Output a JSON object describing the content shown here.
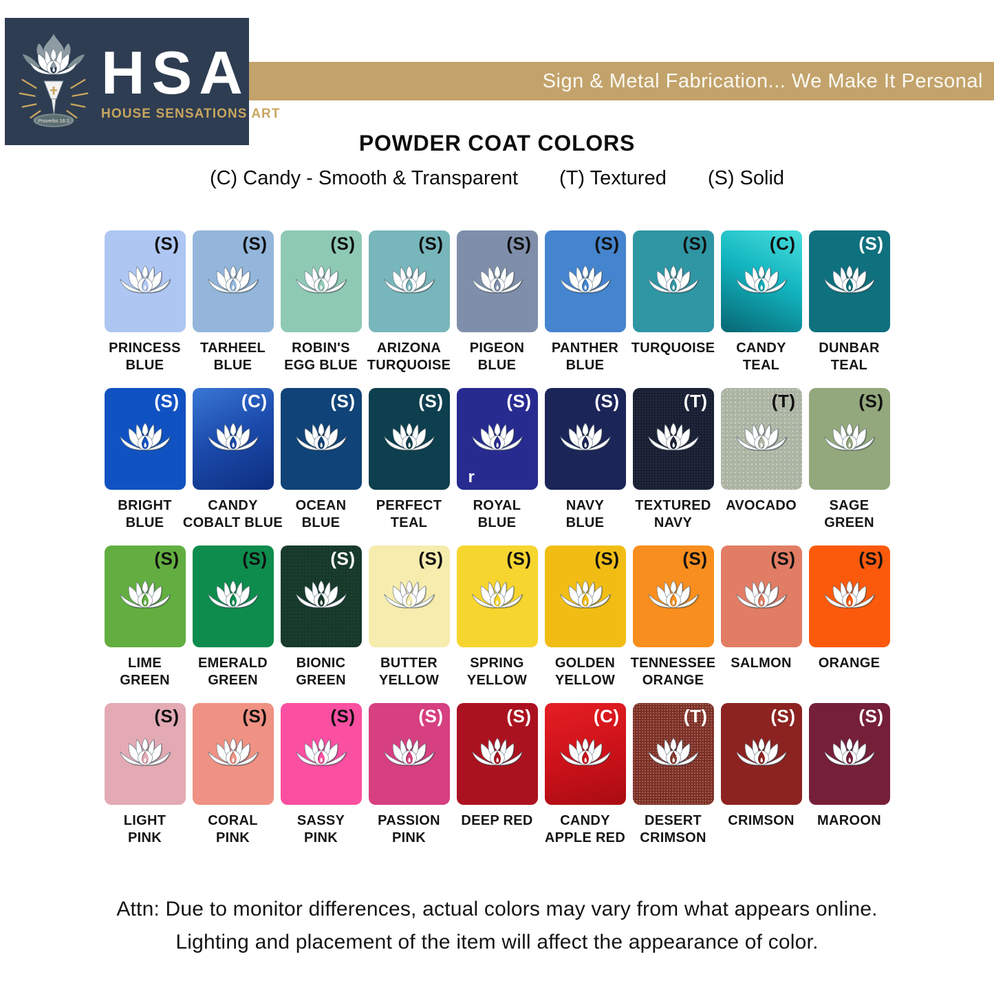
{
  "header": {
    "logo_acronym": "HSA",
    "logo_name": "HOUSE SENSATIONS ART",
    "logo_verse": "Proverbs 16:3",
    "banner_text": "Sign & Metal Fabrication... We Make It Personal"
  },
  "title": "POWDER COAT COLORS",
  "legend": [
    "(C) Candy - Smooth & Transparent",
    "(T) Textured",
    "(S) Solid"
  ],
  "colors": {
    "brand_gold": "#c3a36b",
    "brand_navy": "#2e3d52"
  },
  "swatches": [
    {
      "name_lines": [
        "PRINCESS",
        "BLUE"
      ],
      "finish_code": "(S)",
      "code_color": "#111111",
      "background": "#aec6f2"
    },
    {
      "name_lines": [
        "TARHEEL",
        "BLUE"
      ],
      "finish_code": "(S)",
      "code_color": "#111111",
      "background": "#93b6da"
    },
    {
      "name_lines": [
        "ROBIN'S",
        "EGG BLUE"
      ],
      "finish_code": "(S)",
      "code_color": "#111111",
      "background": "#8ec9b4"
    },
    {
      "name_lines": [
        "ARIZONA",
        "TURQUOISE"
      ],
      "finish_code": "(S)",
      "code_color": "#111111",
      "background": "#77b6bb"
    },
    {
      "name_lines": [
        "PIGEON",
        "BLUE"
      ],
      "finish_code": "(S)",
      "code_color": "#111111",
      "background": "#7f8fab"
    },
    {
      "name_lines": [
        "PANTHER",
        "BLUE"
      ],
      "finish_code": "(S)",
      "code_color": "#111111",
      "background": "#4584ce"
    },
    {
      "name_lines": [
        "TURQUOISE"
      ],
      "finish_code": "(S)",
      "code_color": "#111111",
      "background": "#2f96a4"
    },
    {
      "name_lines": [
        "CANDY",
        "TEAL"
      ],
      "finish_code": "(C)",
      "code_color": "#111111",
      "background": "linear-gradient(205deg,#4adfdd 0%,#12b5c0 45%,#076672 100%)"
    },
    {
      "name_lines": [
        "DUNBAR",
        "TEAL"
      ],
      "finish_code": "(S)",
      "code_color": "#ffffff",
      "background": "#0f707e"
    },
    {
      "name_lines": [
        "BRIGHT",
        "BLUE"
      ],
      "finish_code": "(S)",
      "code_color": "#ffffff",
      "background": "#1152c2"
    },
    {
      "name_lines": [
        "CANDY",
        "COBALT BLUE"
      ],
      "finish_code": "(C)",
      "code_color": "#ffffff",
      "background": "linear-gradient(155deg,#3a77d4 0%,#1c4cae 45%,#0d2d7e 100%)"
    },
    {
      "name_lines": [
        "OCEAN",
        "BLUE"
      ],
      "finish_code": "(S)",
      "code_color": "#ffffff",
      "background": "#104377"
    },
    {
      "name_lines": [
        "PERFECT",
        "TEAL"
      ],
      "finish_code": "(S)",
      "code_color": "#ffffff",
      "background": "#0e3f4e"
    },
    {
      "name_lines": [
        "ROYAL",
        "BLUE"
      ],
      "finish_code": "(S)",
      "code_color": "#ffffff",
      "background": "#272b90",
      "stray_char": "r"
    },
    {
      "name_lines": [
        "NAVY",
        "BLUE"
      ],
      "finish_code": "(S)",
      "code_color": "#ffffff",
      "background": "#1b2558"
    },
    {
      "name_lines": [
        "TEXTURED",
        "NAVY"
      ],
      "finish_code": "(T)",
      "code_color": "#ffffff",
      "background": "#181f33",
      "texture": "tex-navy"
    },
    {
      "name_lines": [
        "AVOCADO"
      ],
      "finish_code": "(T)",
      "code_color": "#111111",
      "background": "#adb5a4",
      "texture": "tex-avocado"
    },
    {
      "name_lines": [
        "SAGE",
        "GREEN"
      ],
      "finish_code": "(S)",
      "code_color": "#111111",
      "background": "#93a87c"
    },
    {
      "name_lines": [
        "LIME",
        "GREEN"
      ],
      "finish_code": "(S)",
      "code_color": "#111111",
      "background": "#62ae40"
    },
    {
      "name_lines": [
        "EMERALD",
        "GREEN"
      ],
      "finish_code": "(S)",
      "code_color": "#111111",
      "background": "#0d8c4d"
    },
    {
      "name_lines": [
        "BIONIC",
        "GREEN"
      ],
      "finish_code": "(S)",
      "code_color": "#ffffff",
      "background": "#16392a",
      "texture": "tex-bionic"
    },
    {
      "name_lines": [
        "BUTTER",
        "YELLOW"
      ],
      "finish_code": "(S)",
      "code_color": "#111111",
      "background": "#f6ecae"
    },
    {
      "name_lines": [
        "SPRING",
        "YELLOW"
      ],
      "finish_code": "(S)",
      "code_color": "#111111",
      "background": "#f7d52f"
    },
    {
      "name_lines": [
        "GOLDEN",
        "YELLOW"
      ],
      "finish_code": "(S)",
      "code_color": "#111111",
      "background": "#f1bd15"
    },
    {
      "name_lines": [
        "TENNESSEE",
        "ORANGE"
      ],
      "finish_code": "(S)",
      "code_color": "#111111",
      "background": "#f88e1e"
    },
    {
      "name_lines": [
        "SALMON"
      ],
      "finish_code": "(S)",
      "code_color": "#111111",
      "background": "#e17d64"
    },
    {
      "name_lines": [
        "ORANGE"
      ],
      "finish_code": "(S)",
      "code_color": "#111111",
      "background": "#fb5a0c"
    },
    {
      "name_lines": [
        "LIGHT",
        "PINK"
      ],
      "finish_code": "(S)",
      "code_color": "#111111",
      "background": "#e3aab4"
    },
    {
      "name_lines": [
        "CORAL",
        "PINK"
      ],
      "finish_code": "(S)",
      "code_color": "#111111",
      "background": "#ef9183"
    },
    {
      "name_lines": [
        "SASSY",
        "PINK"
      ],
      "finish_code": "(S)",
      "code_color": "#111111",
      "background": "#fb4fa1"
    },
    {
      "name_lines": [
        "PASSION",
        "PINK"
      ],
      "finish_code": "(S)",
      "code_color": "#ffffff",
      "background": "#d63f80"
    },
    {
      "name_lines": [
        "DEEP RED"
      ],
      "finish_code": "(S)",
      "code_color": "#ffffff",
      "background": "#ab1220"
    },
    {
      "name_lines": [
        "CANDY",
        "APPLE RED"
      ],
      "finish_code": "(C)",
      "code_color": "#ffffff",
      "background": "linear-gradient(165deg,#e51e24 0%,#cb1119 55%,#a80c13 100%)"
    },
    {
      "name_lines": [
        "DESERT",
        "CRIMSON"
      ],
      "finish_code": "(T)",
      "code_color": "#ffffff",
      "background": "#7e3026",
      "texture": "tex-desert"
    },
    {
      "name_lines": [
        "CRIMSON"
      ],
      "finish_code": "(S)",
      "code_color": "#ffffff",
      "background": "#8c2321"
    },
    {
      "name_lines": [
        "MAROON"
      ],
      "finish_code": "(S)",
      "code_color": "#ffffff",
      "background": "#761f39"
    }
  ],
  "footer": [
    "Attn: Due to monitor differences, actual colors may vary from what appears online.",
    "Lighting and placement of the item will affect the appearance of color."
  ]
}
